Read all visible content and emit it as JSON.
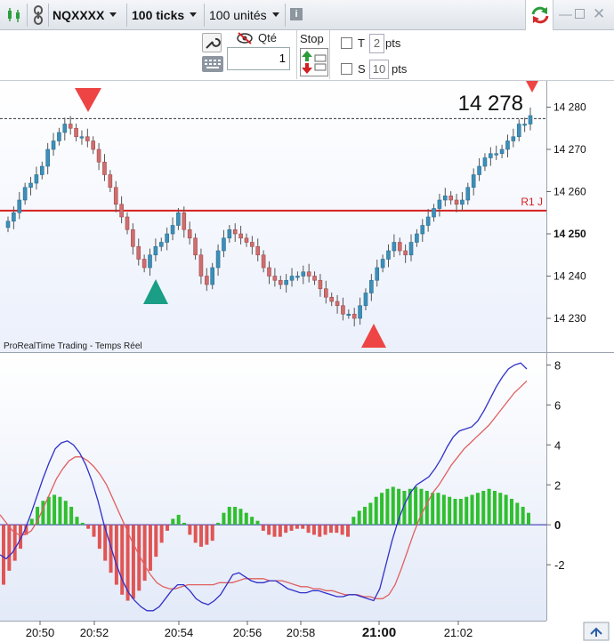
{
  "toolbar": {
    "instrument": "NQXXXX",
    "ticks": "100 ticks",
    "units": "100 unités",
    "info_icon": "info-icon",
    "refresh_icon": "refresh-icon",
    "window_controls": [
      "minimize-icon",
      "maximize-icon",
      "close-icon"
    ]
  },
  "order": {
    "qty_label": "Qté",
    "qty_value": "1",
    "stop_label": "Stop",
    "t_label": "T",
    "t_value": "2",
    "t_unit": "pts",
    "s_label": "S",
    "s_value": "10",
    "s_unit": "pts"
  },
  "price_chart": {
    "source_label": "ProRealTime Trading - Temps Réel",
    "last_price": "14 278",
    "current_axis_label": "14 250",
    "pivot_label": "R1 J",
    "pivot_value": 14255.5,
    "dashed_level": 14277.3,
    "y_ticks": [
      14280,
      14270,
      14260,
      14250,
      14240,
      14230
    ],
    "y_tick_labels": [
      "14 280",
      "14 270",
      "14 260",
      "14 250",
      "14 240",
      "14 230"
    ],
    "colors": {
      "up": "#3d8fb8",
      "down": "#cf6e6e",
      "pivot": "#d62020",
      "arrow_red": "#ee4444",
      "arrow_green": "#1a9e86"
    }
  },
  "indicator": {
    "y_ticks": [
      8,
      6,
      4,
      2,
      0,
      -2
    ],
    "y_tick_labels": [
      "8",
      "6",
      "4",
      "2",
      "0",
      "-2"
    ],
    "colors": {
      "hist_up": "#2fbf2f",
      "hist_down": "#e05555",
      "fast": "#3030c8",
      "slow": "#e06060"
    }
  },
  "time_axis": {
    "labels": [
      "20:50",
      "20:52",
      "20:54",
      "20:56",
      "20:58",
      "21:00",
      "21:02"
    ],
    "bold": "21:00"
  },
  "chart_data": [
    {
      "type": "candlestick",
      "title": "NQXXXX",
      "close": [
        14253,
        14255,
        14258,
        14261,
        14262,
        14264,
        14266,
        14270,
        14272,
        14274,
        14276,
        14275,
        14273,
        14273,
        14272,
        14270,
        14267,
        14264,
        14261,
        14257,
        14254,
        14251,
        14247,
        14244,
        14242,
        14245,
        14247,
        14248,
        14250,
        14252,
        14255,
        14251,
        14249,
        14245,
        14240,
        14238,
        14242,
        14246,
        14249,
        14251,
        14250,
        14249,
        14248,
        14247,
        14245,
        14242,
        14240,
        14239,
        14238,
        14239,
        14240,
        14240,
        14241,
        14240,
        14239,
        14237,
        14235,
        14234,
        14233,
        14231,
        14231,
        14230,
        14233,
        14236,
        14239,
        14242,
        14244,
        14246,
        14248,
        14246,
        14245,
        14248,
        14250,
        14252,
        14254,
        14256,
        14258,
        14259,
        14258,
        14257,
        14258,
        14261,
        14264,
        14266,
        14268,
        14269,
        14269,
        14270,
        14272,
        14273,
        14276,
        14276,
        14278
      ],
      "last": 14278,
      "pivot_R1_J": 14255.5,
      "y_range": [
        14222,
        14286
      ]
    },
    {
      "type": "line",
      "hist": [
        -3.0,
        -2.3,
        -1.8,
        -1.2,
        -0.5,
        0.3,
        0.9,
        1.2,
        1.4,
        1.5,
        1.4,
        1.2,
        0.9,
        0.4,
        0.1,
        -0.2,
        -0.6,
        -1.2,
        -1.8,
        -2.4,
        -3.0,
        -3.5,
        -3.8,
        -3.7,
        -3.3,
        -2.8,
        -2.3,
        -1.6,
        -0.9,
        -0.3,
        0.3,
        0.5,
        0.1,
        -0.5,
        -0.9,
        -1.1,
        -1.0,
        -0.8,
        0.1,
        0.6,
        0.9,
        0.9,
        0.8,
        0.6,
        0.4,
        0.2,
        -0.3,
        -0.5,
        -0.6,
        -0.6,
        -0.4,
        -0.3,
        -0.2,
        -0.2,
        -0.4,
        -0.5,
        -0.6,
        -0.5,
        -0.4,
        -0.4,
        -0.5,
        -0.6,
        0.4,
        0.7,
        0.9,
        1.1,
        1.4,
        1.6,
        1.8,
        1.9,
        1.8,
        1.7,
        1.8,
        1.9,
        1.8,
        1.7,
        1.6,
        1.6,
        1.5,
        1.4,
        1.3,
        1.3,
        1.4,
        1.5,
        1.6,
        1.7,
        1.8,
        1.7,
        1.6,
        1.5,
        1.3,
        1.1,
        0.9,
        0.6
      ],
      "series": [
        {
          "values": [
            -1.5,
            -1.7,
            -1.4,
            -0.9,
            -0.3,
            0.5,
            1.4,
            2.3,
            3.1,
            3.8,
            4.1,
            4.2,
            4.0,
            3.6,
            3.0,
            2.2,
            1.2,
            0.0,
            -1.0,
            -2.0,
            -2.8,
            -3.4,
            -3.8,
            -4.1,
            -4.3,
            -4.3,
            -4.1,
            -3.7,
            -3.3,
            -3.0,
            -3.0,
            -3.3,
            -3.7,
            -3.9,
            -4.0,
            -3.8,
            -3.5,
            -3.0,
            -2.5,
            -2.4,
            -2.6,
            -2.8,
            -2.9,
            -2.9,
            -2.8,
            -2.8,
            -3.0,
            -3.2,
            -3.3,
            -3.4,
            -3.4,
            -3.3,
            -3.3,
            -3.4,
            -3.5,
            -3.6,
            -3.6,
            -3.5,
            -3.5,
            -3.6,
            -3.7,
            -3.8,
            -3.2,
            -2.0,
            -0.8,
            0.2,
            1.0,
            1.6,
            2.0,
            2.2,
            2.4,
            2.8,
            3.3,
            3.9,
            4.4,
            4.7,
            4.8,
            4.9,
            5.2,
            5.7,
            6.3,
            6.9,
            7.4,
            7.8,
            8.0,
            8.1,
            7.8
          ]
        },
        {
          "values": [
            0.5,
            0.1,
            -0.3,
            -0.5,
            -0.5,
            -0.3,
            0.2,
            0.9,
            1.6,
            2.3,
            2.8,
            3.2,
            3.4,
            3.4,
            3.2,
            2.9,
            2.5,
            2.0,
            1.3,
            0.6,
            -0.1,
            -0.8,
            -1.4,
            -2.0,
            -2.5,
            -2.9,
            -3.1,
            -3.2,
            -3.2,
            -3.1,
            -3.0,
            -3.0,
            -3.0,
            -3.0,
            -3.0,
            -2.9,
            -2.9,
            -2.9,
            -2.8,
            -2.7,
            -2.7,
            -2.7,
            -2.7,
            -2.8,
            -2.8,
            -2.8,
            -2.9,
            -3.0,
            -3.1,
            -3.1,
            -3.2,
            -3.2,
            -3.3,
            -3.3,
            -3.4,
            -3.5,
            -3.5,
            -3.5,
            -3.6,
            -3.6,
            -3.7,
            -3.7,
            -3.5,
            -3.0,
            -2.2,
            -1.3,
            -0.4,
            0.4,
            1.0,
            1.6,
            2.0,
            2.5,
            3.0,
            3.4,
            3.8,
            4.1,
            4.4,
            4.7,
            5.0,
            5.4,
            5.8,
            6.2,
            6.6,
            6.9,
            7.2
          ]
        }
      ],
      "y_range": [
        -4.8,
        8.6
      ]
    }
  ]
}
